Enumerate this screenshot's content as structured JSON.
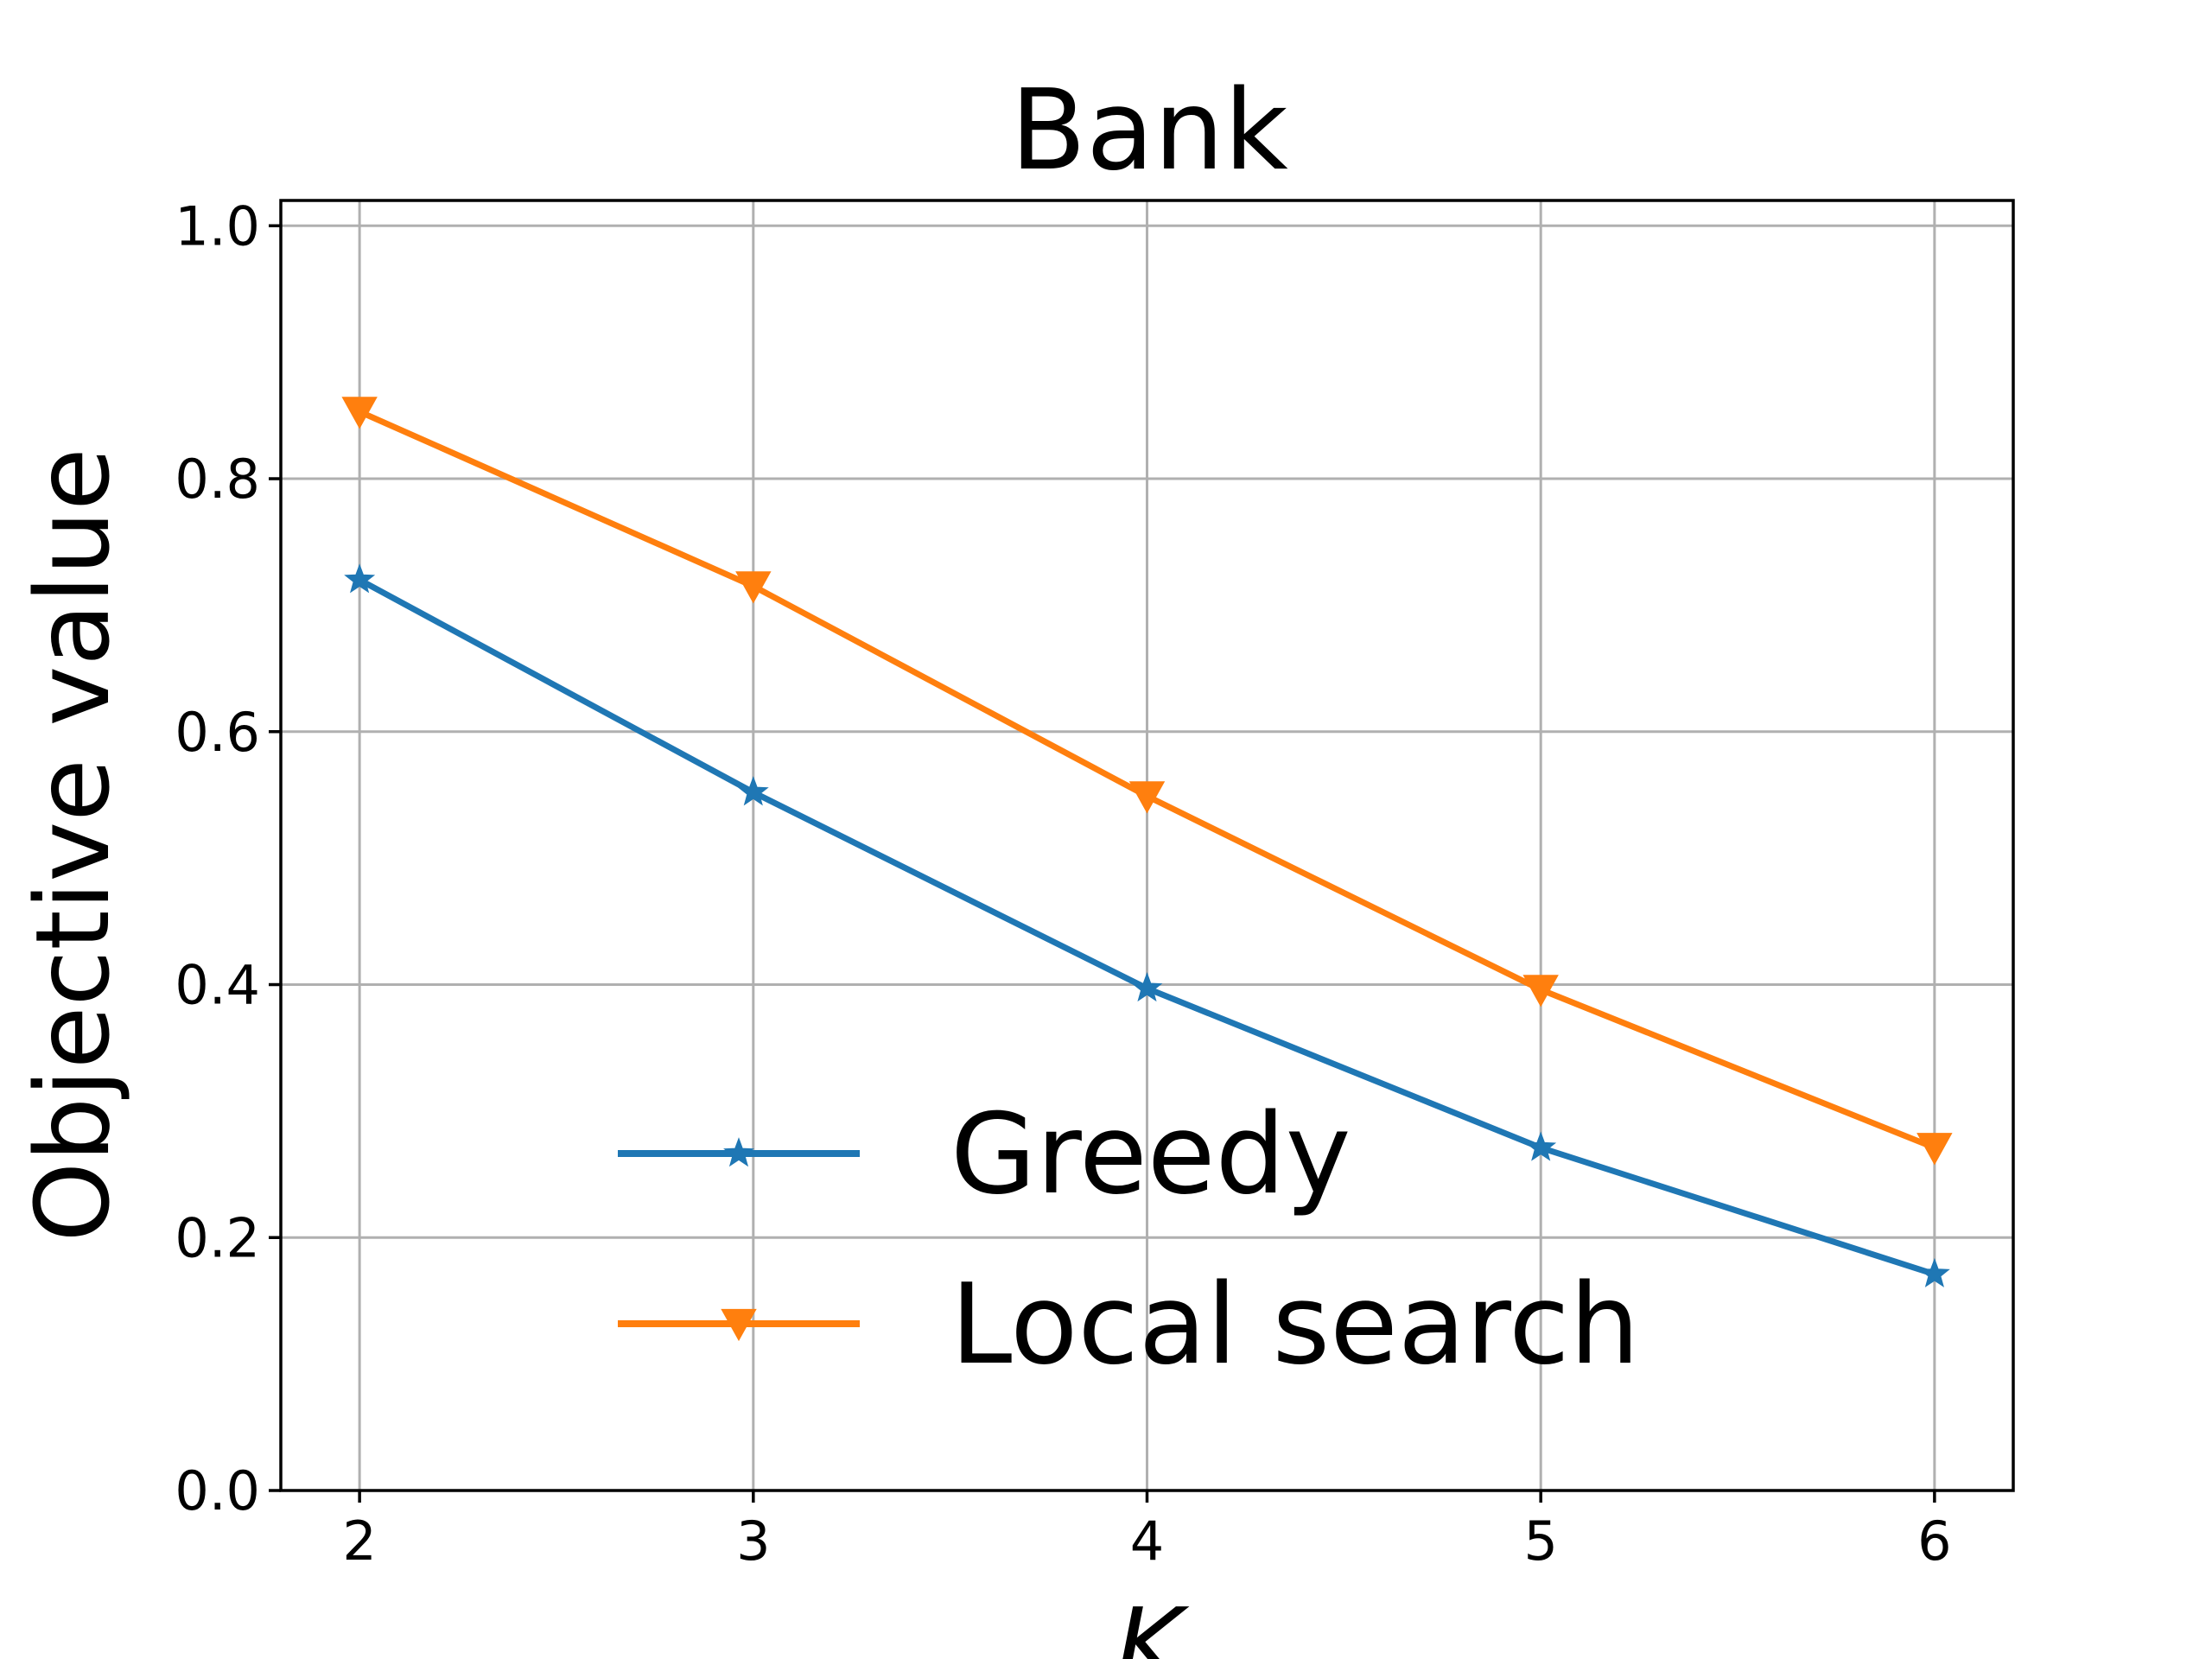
{
  "chart_data": {
    "type": "line",
    "title": "Bank",
    "xlabel": "K",
    "ylabel": "Objective value",
    "x": [
      2,
      3,
      4,
      5,
      6
    ],
    "xlim": [
      1.8,
      6.2
    ],
    "ylim": [
      0.0,
      1.02
    ],
    "xticks": [
      "2",
      "3",
      "4",
      "5",
      "6"
    ],
    "yticks": [
      "0.0",
      "0.2",
      "0.4",
      "0.6",
      "0.8",
      "1.0"
    ],
    "grid": true,
    "legend_position": "lower-center",
    "series": [
      {
        "name": "Greedy",
        "values": [
          0.72,
          0.552,
          0.397,
          0.271,
          0.171
        ],
        "color": "#1f77b4",
        "marker": "star"
      },
      {
        "name": "Local search",
        "values": [
          0.853,
          0.715,
          0.549,
          0.396,
          0.271
        ],
        "color": "#ff7f0e",
        "marker": "triangle-down"
      }
    ]
  }
}
